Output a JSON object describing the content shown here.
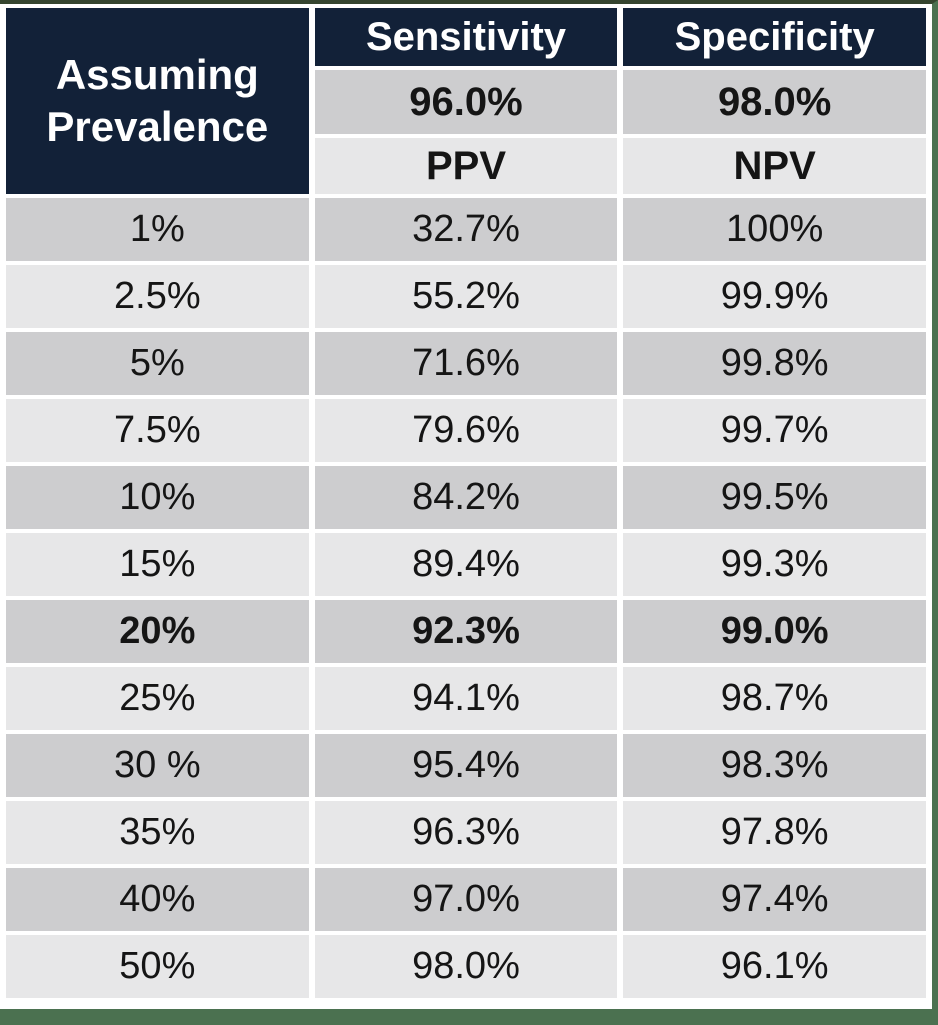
{
  "chart_data": {
    "type": "table",
    "corner_header": "Assuming Prevalence",
    "columns": [
      {
        "metric_label": "Sensitivity",
        "metric_value": "96.0%",
        "derived_label": "PPV"
      },
      {
        "metric_label": "Specificity",
        "metric_value": "98.0%",
        "derived_label": "NPV"
      }
    ],
    "rows": [
      {
        "prevalence": "1%",
        "ppv": "32.7%",
        "npv": "100%",
        "bold": false
      },
      {
        "prevalence": "2.5%",
        "ppv": "55.2%",
        "npv": "99.9%",
        "bold": false
      },
      {
        "prevalence": "5%",
        "ppv": "71.6%",
        "npv": "99.8%",
        "bold": false
      },
      {
        "prevalence": "7.5%",
        "ppv": "79.6%",
        "npv": "99.7%",
        "bold": false
      },
      {
        "prevalence": "10%",
        "ppv": "84.2%",
        "npv": "99.5%",
        "bold": false
      },
      {
        "prevalence": "15%",
        "ppv": "89.4%",
        "npv": "99.3%",
        "bold": false
      },
      {
        "prevalence": "20%",
        "ppv": "92.3%",
        "npv": "99.0%",
        "bold": true
      },
      {
        "prevalence": "25%",
        "ppv": "94.1%",
        "npv": "98.7%",
        "bold": false
      },
      {
        "prevalence": "30 %",
        "ppv": "95.4%",
        "npv": "98.3%",
        "bold": false
      },
      {
        "prevalence": "35%",
        "ppv": "96.3%",
        "npv": "97.8%",
        "bold": false
      },
      {
        "prevalence": "40%",
        "ppv": "97.0%",
        "npv": "97.4%",
        "bold": false
      },
      {
        "prevalence": "50%",
        "ppv": "98.0%",
        "npv": "96.1%",
        "bold": false
      }
    ],
    "highlighted_row": "20%",
    "layout": {
      "striped": true,
      "first_stripe": "dark",
      "grid_gaps": "white",
      "legend_position": "none"
    }
  },
  "colors": {
    "header_navy": "#122138",
    "stripe_dark": "#cdcdcf",
    "stripe_light": "#e7e7e8",
    "frame_green": "#4b7150",
    "frame_green_top": "#35452f",
    "grid_white": "#ffffff",
    "text_dark": "#151515",
    "text_white": "#ffffff"
  }
}
